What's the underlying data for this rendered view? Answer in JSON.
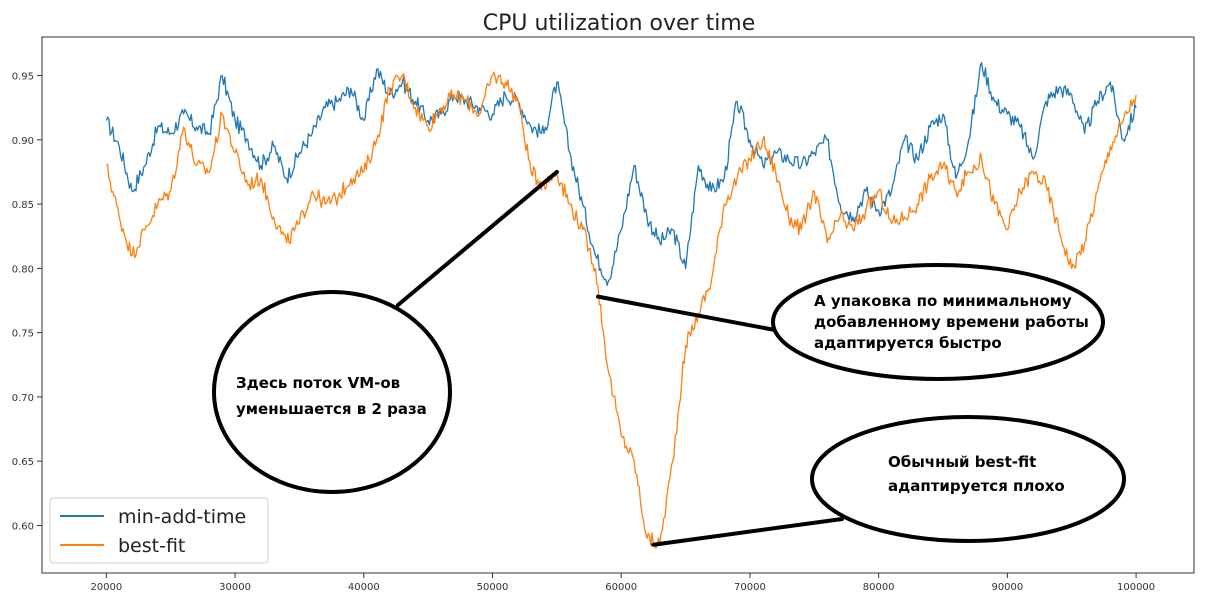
{
  "chart_data": {
    "type": "line",
    "title": "CPU utilization over time",
    "xlabel": "",
    "ylabel": "",
    "xlim": [
      15000,
      104500
    ],
    "ylim": [
      0.563,
      0.98
    ],
    "x_ticks": [
      20000,
      30000,
      40000,
      50000,
      60000,
      70000,
      80000,
      90000,
      100000
    ],
    "x_tick_labels": [
      "20000",
      "30000",
      "40000",
      "50000",
      "60000",
      "70000",
      "80000",
      "90000",
      "100000"
    ],
    "y_ticks": [
      0.6,
      0.65,
      0.7,
      0.75,
      0.8,
      0.85,
      0.9,
      0.95
    ],
    "y_tick_labels": [
      "0.60",
      "0.65",
      "0.70",
      "0.75",
      "0.80",
      "0.85",
      "0.90",
      "0.95"
    ],
    "grid": false,
    "legend_position": "bottom-left",
    "x": [
      20000,
      21000,
      22000,
      23000,
      24000,
      25000,
      26000,
      27000,
      28000,
      29000,
      30000,
      31000,
      32000,
      33000,
      34000,
      35000,
      36000,
      37000,
      38000,
      39000,
      40000,
      41000,
      42000,
      43000,
      44000,
      45000,
      46000,
      47000,
      48000,
      49000,
      50000,
      51000,
      52000,
      53000,
      54000,
      55000,
      56000,
      57000,
      58000,
      59000,
      60000,
      61000,
      62000,
      63000,
      64000,
      65000,
      66000,
      67000,
      68000,
      69000,
      70000,
      71000,
      72000,
      73000,
      74000,
      75000,
      76000,
      77000,
      78000,
      79000,
      80000,
      81000,
      82000,
      83000,
      84000,
      85000,
      86000,
      87000,
      88000,
      89000,
      90000,
      91000,
      92000,
      93000,
      94000,
      95000,
      96000,
      97000,
      98000,
      99000,
      100000
    ],
    "series": [
      {
        "name": "min-add-time",
        "color": "#1f77b4",
        "values": [
          0.915,
          0.895,
          0.86,
          0.88,
          0.91,
          0.905,
          0.92,
          0.91,
          0.905,
          0.95,
          0.915,
          0.9,
          0.88,
          0.895,
          0.87,
          0.89,
          0.905,
          0.925,
          0.93,
          0.94,
          0.915,
          0.955,
          0.935,
          0.945,
          0.93,
          0.915,
          0.92,
          0.935,
          0.93,
          0.925,
          0.92,
          0.935,
          0.93,
          0.91,
          0.905,
          0.945,
          0.89,
          0.85,
          0.81,
          0.79,
          0.83,
          0.88,
          0.84,
          0.82,
          0.83,
          0.8,
          0.88,
          0.86,
          0.87,
          0.93,
          0.9,
          0.88,
          0.89,
          0.885,
          0.88,
          0.89,
          0.9,
          0.85,
          0.84,
          0.86,
          0.845,
          0.86,
          0.9,
          0.885,
          0.91,
          0.92,
          0.87,
          0.9,
          0.96,
          0.93,
          0.92,
          0.91,
          0.885,
          0.93,
          0.94,
          0.935,
          0.905,
          0.93,
          0.945,
          0.9,
          0.925
        ]
      },
      {
        "name": "best-fit",
        "color": "#ff7f0e",
        "values": [
          0.88,
          0.84,
          0.81,
          0.83,
          0.85,
          0.86,
          0.91,
          0.88,
          0.875,
          0.92,
          0.89,
          0.865,
          0.87,
          0.84,
          0.82,
          0.835,
          0.86,
          0.85,
          0.855,
          0.87,
          0.875,
          0.9,
          0.94,
          0.95,
          0.925,
          0.91,
          0.925,
          0.935,
          0.93,
          0.92,
          0.95,
          0.945,
          0.93,
          0.875,
          0.865,
          0.875,
          0.85,
          0.83,
          0.8,
          0.72,
          0.67,
          0.65,
          0.59,
          0.585,
          0.65,
          0.74,
          0.765,
          0.79,
          0.85,
          0.87,
          0.885,
          0.9,
          0.875,
          0.84,
          0.83,
          0.86,
          0.82,
          0.84,
          0.83,
          0.845,
          0.86,
          0.835,
          0.84,
          0.85,
          0.87,
          0.88,
          0.86,
          0.875,
          0.885,
          0.85,
          0.83,
          0.86,
          0.875,
          0.865,
          0.83,
          0.8,
          0.82,
          0.86,
          0.895,
          0.915,
          0.935
        ]
      }
    ],
    "annotations": [
      {
        "lines": [
          "Здесь поток VM-ов",
          "уменьшается в 2 раза"
        ],
        "target_x": 55000,
        "target_y": 0.875
      },
      {
        "lines": [
          "А упаковка по минимальному",
          "добавленному времени работы",
          "адаптируется быстро"
        ],
        "target_x": 58200,
        "target_y": 0.778
      },
      {
        "lines": [
          "Обычный best-fit",
          "адаптируется плохо"
        ],
        "target_x": 62500,
        "target_y": 0.585
      }
    ]
  }
}
